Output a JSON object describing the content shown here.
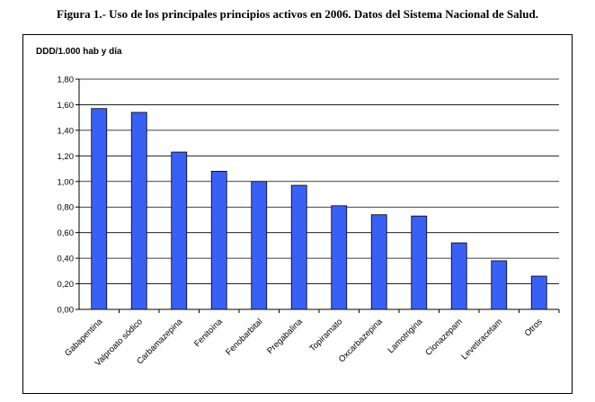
{
  "figure_title": "Figura 1.- Uso de los principales principios activos en 2006. Datos del Sistema Nacional de Salud.",
  "chart_data": {
    "type": "bar",
    "title": "",
    "ylabel": "DDD/1.000 hab y día",
    "xlabel": "",
    "categories": [
      "Gabapentina",
      "Valproato sódico",
      "Carbamazepina",
      "Fenitoína",
      "Fenobarbital",
      "Pregabalina",
      "Topiramato",
      "Oxcarbazepina",
      "Lamotrigina",
      "Clonazepam",
      "Levetiracetam",
      "Otros"
    ],
    "values": [
      1.57,
      1.54,
      1.23,
      1.08,
      1.0,
      0.97,
      0.81,
      0.74,
      0.73,
      0.52,
      0.38,
      0.26
    ],
    "ylim": [
      0,
      1.8
    ],
    "yticks": [
      "0,00",
      "0,20",
      "0,40",
      "0,60",
      "0,80",
      "1,00",
      "1,20",
      "1,40",
      "1,60",
      "1,80"
    ],
    "grid": true,
    "legend": "none",
    "bar_color": "#3A5FF5",
    "bar_edge_color": "#000000"
  }
}
